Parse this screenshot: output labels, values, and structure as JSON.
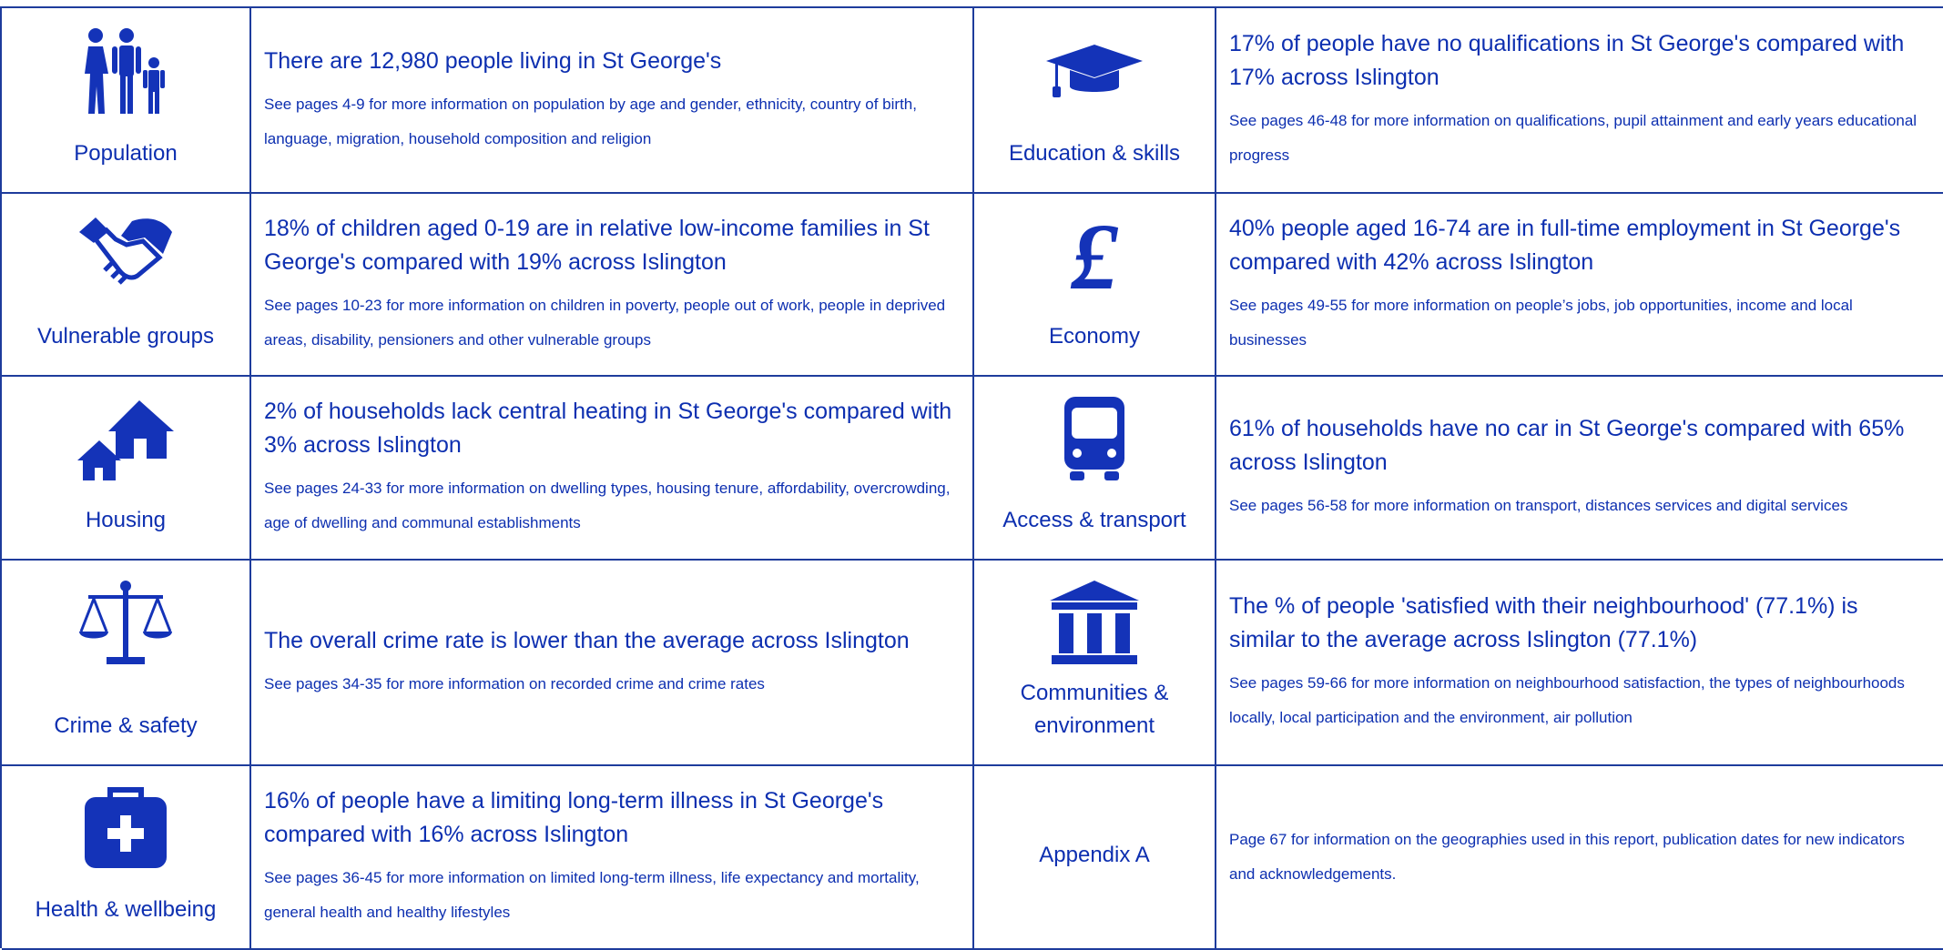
{
  "sections": [
    {
      "label": "Population",
      "headline": "There are 12,980 people living in St George's",
      "detail": "See pages 4-9 for more information on population by age and gender, ethnicity, country of birth, language, migration, household composition and religion"
    },
    {
      "label": "Education & skills",
      "headline": "17% of people have no qualifications in St George's compared with 17% across Islington",
      "detail": "See pages 46-48 for more information on qualifications, pupil attainment and early years educational progress"
    },
    {
      "label": "Vulnerable groups",
      "headline": "18% of children aged 0-19 are in relative low-income families in St George's compared with 19% across Islington",
      "detail": "See pages 10-23 for more information on children in poverty, people out of work, people in deprived areas, disability, pensioners and other vulnerable groups"
    },
    {
      "label": "Economy",
      "headline": "40% people aged 16-74 are in full-time employment in St George's compared with 42% across Islington",
      "detail": "See pages 49-55 for more information on people’s jobs, job opportunities, income and local businesses"
    },
    {
      "label": "Housing",
      "headline": "2% of households lack central heating in St George's compared with 3% across Islington",
      "detail": "See pages 24-33 for more information on dwelling types, housing tenure, affordability, overcrowding, age of dwelling and communal establishments"
    },
    {
      "label": "Access & transport",
      "headline": "61% of households have no car in St George's compared with 65% across Islington",
      "detail": "See pages 56-58 for more information on transport, distances services and digital services"
    },
    {
      "label": "Crime & safety",
      "headline": "The overall crime rate is lower than the average across Islington",
      "detail": "See pages 34-35 for more information on recorded crime and crime rates"
    },
    {
      "label": "Communities & environment",
      "headline": "The % of people 'satisfied with their neighbourhood' (77.1%) is similar to the average across Islington (77.1%)",
      "detail": "See pages 59-66 for more information on neighbourhood satisfaction, the types of neighbourhoods locally, local participation and the environment, air pollution"
    },
    {
      "label": "Health & wellbeing",
      "headline": "16% of people have a limiting long-term illness in St George's compared with 16% across Islington",
      "detail": "See pages 36-45 for more information on limited long-term illness, life expectancy and mortality, general health and healthy lifestyles"
    },
    {
      "label": "Appendix A",
      "detail": "Page 67 for information on the geographies used in this report, publication dates for new indicators and acknowledgements."
    }
  ]
}
